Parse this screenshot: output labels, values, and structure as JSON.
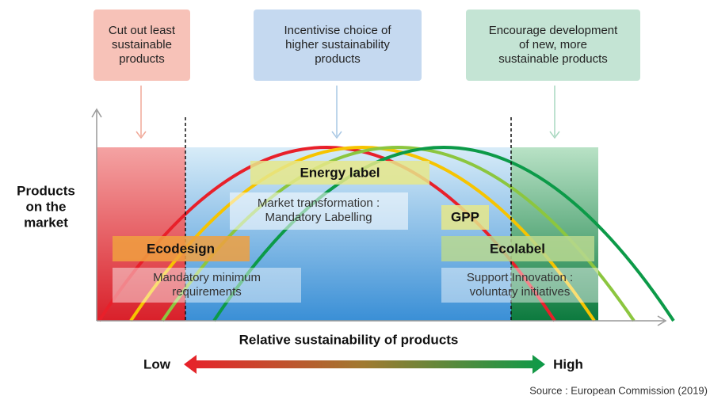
{
  "top_boxes": [
    {
      "lines": [
        "Cut out least",
        "sustainable",
        "products"
      ]
    },
    {
      "lines": [
        "Incentivise choice of",
        "higher sustainability",
        "products"
      ]
    },
    {
      "lines": [
        "Encourage development",
        "of new, more",
        "sustainable products"
      ]
    }
  ],
  "labels": {
    "energy_label": "Energy label",
    "market_transformation": [
      "Market transformation :",
      "Mandatory Labelling"
    ],
    "gpp": "GPP",
    "ecodesign": "Ecodesign",
    "ecolabel": "Ecolabel",
    "mandatory_minimum": [
      "Mandatory minimum",
      "requirements"
    ],
    "support_innovation": [
      "Support Innovation :",
      "voluntary initiatives"
    ]
  },
  "y_axis_label": [
    "Products",
    "on the",
    "market"
  ],
  "x_axis_label": "Relative sustainability of products",
  "scale": {
    "low": "Low",
    "high": "High"
  },
  "source": "Source : European Commission (2019)"
}
